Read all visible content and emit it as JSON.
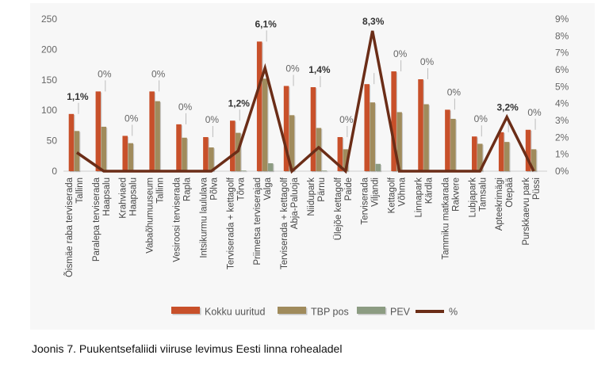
{
  "caption": "Joonis 7. Puukentsefaliidi viiruse levimus Eesti linna rohealadel",
  "chart_data": {
    "type": "bar",
    "categories": [
      "Õismäe raba terviserada\nTallinn",
      "Paralepa terviserada\nHaapsalu",
      "Krahviaed\nHaapsalu",
      "Vabaõhumuuseum\nTallinn",
      "Vesiroosi terviserada\nRapla",
      "Intsikurmu laululava\nPõlva",
      "Terviserada + kettagolf\nTõrva",
      "Priimetsa terviserajad\nValga",
      "Terviserada + kettagolf\nAbja-Paluoja",
      "Niidupark\nPärnu",
      "Ülejõe kettagolf\nPaide",
      "Terviserada\nViljandi",
      "Kettagolf\nVõhma",
      "Linnapark\nKärdla",
      "Tammiku matkarada\nRakvere",
      "Lubjapark\nTamsalu",
      "Apteekrimägi\nOtepää",
      "Purskkaevu park\nPüssi"
    ],
    "series": [
      {
        "name": "Kokku uuritud",
        "kind": "bar",
        "axis": "left",
        "color": "#c8502a",
        "values": [
          94,
          131,
          58,
          131,
          77,
          56,
          83,
          213,
          140,
          138,
          56,
          143,
          164,
          151,
          101,
          57,
          64,
          68
        ]
      },
      {
        "name": "TBP pos",
        "kind": "bar",
        "axis": "left",
        "color": "#a08b5c",
        "values": [
          66,
          73,
          46,
          115,
          55,
          39,
          63,
          152,
          92,
          71,
          36,
          113,
          97,
          110,
          86,
          45,
          48,
          36
        ]
      },
      {
        "name": "PEV",
        "kind": "bar",
        "axis": "left",
        "color": "#8c9c82",
        "values": [
          0,
          0,
          0,
          0,
          0,
          0,
          1,
          13,
          0,
          1,
          0,
          12,
          0,
          0,
          0,
          0,
          0,
          0
        ]
      },
      {
        "name": "%",
        "kind": "line",
        "axis": "right",
        "color": "#6b2d17",
        "values": [
          1.1,
          0,
          0,
          0,
          0,
          0,
          1.2,
          6.1,
          0,
          1.4,
          0,
          8.3,
          0,
          0,
          0,
          0,
          3.2,
          0
        ]
      }
    ],
    "data_labels": [
      "1,1%",
      "0%",
      "0%",
      "0%",
      "0%",
      "0%",
      "1,2%",
      "6,1%",
      "0%",
      "1,4%",
      "0%",
      "8,3%",
      "0%",
      "0%",
      "0%",
      "0%",
      "3,2%",
      "0%"
    ],
    "bold_labels": [
      true,
      false,
      false,
      false,
      false,
      false,
      true,
      true,
      false,
      true,
      false,
      true,
      false,
      false,
      false,
      false,
      true,
      false
    ],
    "y_left": {
      "ticks": [
        0,
        50,
        100,
        150,
        200,
        250
      ],
      "ylim": [
        0,
        250
      ]
    },
    "y_right": {
      "ticks": [
        "0%",
        "1%",
        "2%",
        "3%",
        "4%",
        "5%",
        "6%",
        "7%",
        "8%",
        "9%"
      ],
      "ylim": [
        0,
        9
      ]
    },
    "legend_position": "bottom",
    "grid": false
  }
}
